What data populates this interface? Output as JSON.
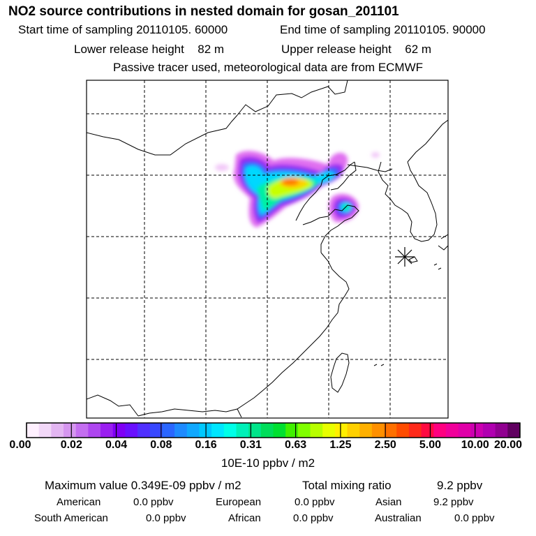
{
  "header": {
    "title": "NO2 source contributions in nested domain for gosan_201101",
    "start_label": "Start time of sampling",
    "start_value": "20110105. 60000",
    "end_label": "End time of sampling",
    "end_value": "20110105. 90000",
    "lower_label": "Lower release height",
    "lower_value": "82 m",
    "upper_label": "Upper release height",
    "upper_value": "62 m",
    "tracer_note": "Passive tracer used, meteorological data are from ECMWF"
  },
  "colorbar": {
    "labels": [
      "0.00",
      "0.02",
      "0.04",
      "0.08",
      "0.16",
      "0.31",
      "0.63",
      "1.25",
      "2.50",
      "5.00",
      "10.00",
      "20.00"
    ],
    "unit": "10E-10 ppbv / m2",
    "colors": [
      "#fff0ff",
      "#f2d8f8",
      "#e3b6f2",
      "#d596ef",
      "#c46ef0",
      "#ae46ef",
      "#9a1ff0",
      "#7f00f5",
      "#6a10ff",
      "#5030ff",
      "#3848ff",
      "#2a66ff",
      "#1e8aff",
      "#11a8ff",
      "#00c8ff",
      "#00e6ff",
      "#00ffe8",
      "#00f0b8",
      "#00e58a",
      "#00dd5a",
      "#00e030",
      "#40f000",
      "#80ff00",
      "#b8ff00",
      "#e8ff00",
      "#ffef00",
      "#ffd000",
      "#ffb000",
      "#ff9000",
      "#ff7000",
      "#ff4c00",
      "#ff2a1a",
      "#ff0a40",
      "#ff0080",
      "#f0009a",
      "#e000a8",
      "#cc00b0",
      "#b000b0",
      "#900090",
      "#600060"
    ]
  },
  "stats": {
    "max_label": "Maximum value",
    "max_value": "0.349E-09 ppbv / m2",
    "total_label": "Total mixing ratio",
    "total_value": "9.2 ppbv",
    "sources": [
      {
        "name": "American",
        "value": "0.0 ppbv"
      },
      {
        "name": "European",
        "value": "0.0 ppbv"
      },
      {
        "name": "Asian",
        "value": "9.2 ppbv"
      },
      {
        "name": "South American",
        "value": "0.0 ppbv"
      },
      {
        "name": "African",
        "value": "0.0 ppbv"
      },
      {
        "name": "Australian",
        "value": "0.0 ppbv"
      }
    ]
  },
  "map": {
    "receptor_marker": "asterisk-receptor",
    "plume_colors": [
      "#e070f0",
      "#9a20f0",
      "#2a60ff",
      "#00d8ff",
      "#00f0a0",
      "#c8ff00",
      "#ffd000",
      "#ff7a00"
    ]
  }
}
